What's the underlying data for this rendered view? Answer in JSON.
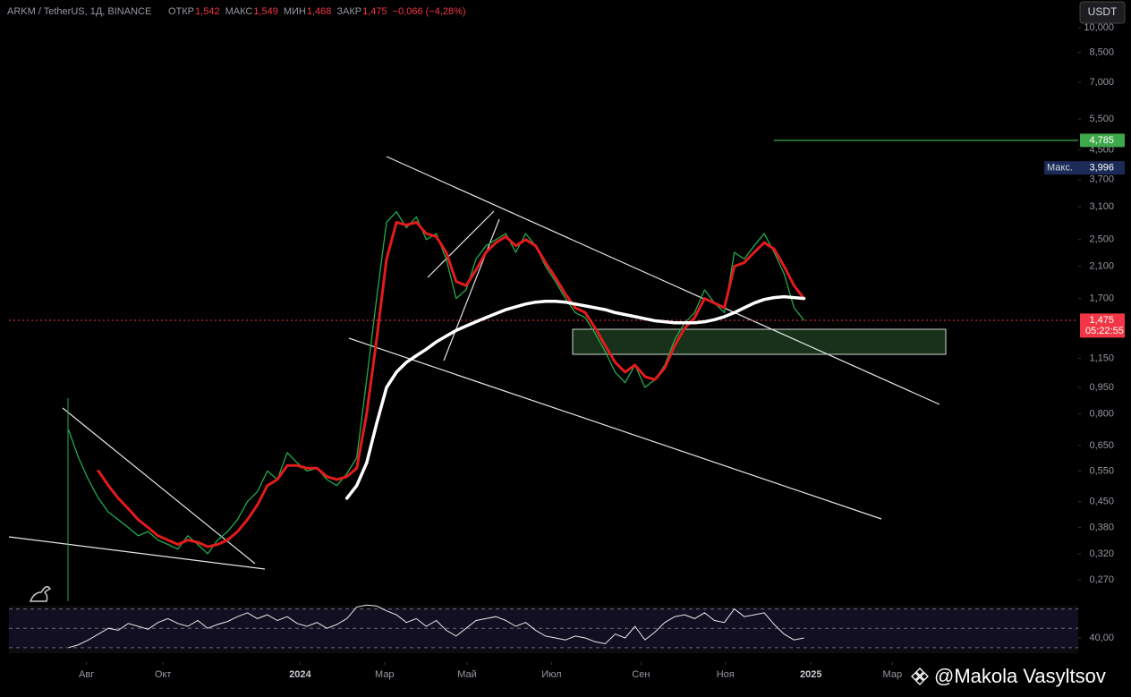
{
  "chart_data": {
    "type": "line",
    "title": "ARKM / TetherUS, 1Д, BINANCE",
    "ohlc": [
      {
        "name": "ОТКР",
        "value": 1.542,
        "label": "1,542"
      },
      {
        "name": "МАКС",
        "value": 1.549,
        "label": "1,549"
      },
      {
        "name": "МИН",
        "value": 1.468,
        "label": "1,468"
      },
      {
        "name": "ЗАКР",
        "value": 1.475,
        "label": "1,475"
      }
    ],
    "change": {
      "value": -0.066,
      "label": "−0,066 (−4,28%)"
    },
    "currency": "USDT",
    "log_y": true,
    "xlim": [
      -6,
      101.6
    ],
    "xticks": [
      {
        "value": 1.8,
        "label": "Авг"
      },
      {
        "value": 9.5,
        "label": "Окт"
      },
      {
        "value": 23.3,
        "label": "2024"
      },
      {
        "value": 31.8,
        "label": "Мар"
      },
      {
        "value": 40.1,
        "label": "Май"
      },
      {
        "value": 48.6,
        "label": "Июл"
      },
      {
        "value": 57.6,
        "label": "Сен"
      },
      {
        "value": 66.1,
        "label": "Ноя"
      },
      {
        "value": 74.7,
        "label": "2025"
      },
      {
        "value": 82.9,
        "label": "Мар"
      }
    ],
    "ylim": [
      0.2304,
      11.99
    ],
    "yticks": [
      {
        "value": 10,
        "label": "10,000"
      },
      {
        "value": 8.5,
        "label": "8,500"
      },
      {
        "value": 7,
        "label": "7,000"
      },
      {
        "value": 5.5,
        "label": "5,500"
      },
      {
        "value": 4.5,
        "label": "4,500"
      },
      {
        "value": 3.7,
        "label": "3,700"
      },
      {
        "value": 3.1,
        "label": "3,100"
      },
      {
        "value": 2.5,
        "label": "2,500"
      },
      {
        "value": 2.1,
        "label": "2,100"
      },
      {
        "value": 1.7,
        "label": "1,700"
      },
      {
        "value": 1.15,
        "label": "1,150"
      },
      {
        "value": 0.95,
        "label": "0,950"
      },
      {
        "value": 0.8,
        "label": "0,800"
      },
      {
        "value": 0.65,
        "label": "0,650"
      },
      {
        "value": 0.55,
        "label": "0,550"
      },
      {
        "value": 0.45,
        "label": "0,450"
      },
      {
        "value": 0.38,
        "label": "0,380"
      },
      {
        "value": 0.32,
        "label": "0,320"
      },
      {
        "value": 0.27,
        "label": "0,270"
      }
    ],
    "series": [
      {
        "color": "#22ab4e",
        "width": 1.3,
        "values": [
          0.72,
          0.6,
          0.52,
          0.46,
          0.42,
          0.4,
          0.38,
          0.36,
          0.37,
          0.35,
          0.34,
          0.33,
          0.36,
          0.34,
          0.32,
          0.35,
          0.37,
          0.4,
          0.45,
          0.48,
          0.55,
          0.52,
          0.62,
          0.58,
          0.55,
          0.56,
          0.52,
          0.5,
          0.54,
          0.6,
          1.0,
          1.7,
          2.8,
          3.0,
          2.7,
          2.9,
          2.5,
          2.6,
          2.2,
          1.7,
          1.8,
          2.2,
          2.4,
          2.5,
          2.6,
          2.3,
          2.6,
          2.4,
          2.1,
          1.9,
          1.7,
          1.55,
          1.5,
          1.35,
          1.2,
          1.05,
          0.98,
          1.1,
          0.95,
          1.0,
          1.1,
          1.3,
          1.45,
          1.55,
          1.8,
          1.65,
          1.55,
          2.3,
          2.2,
          2.4,
          2.6,
          2.3,
          2.0,
          1.6,
          1.475
        ]
      },
      {
        "color": "#e31b1b",
        "width": 3,
        "values": [
          null,
          null,
          null,
          0.55,
          0.5,
          0.46,
          0.43,
          0.4,
          0.38,
          0.36,
          0.35,
          0.34,
          0.35,
          0.345,
          0.335,
          0.34,
          0.35,
          0.37,
          0.4,
          0.44,
          0.5,
          0.52,
          0.57,
          0.57,
          0.56,
          0.56,
          0.53,
          0.52,
          0.53,
          0.56,
          0.8,
          1.3,
          2.2,
          2.8,
          2.75,
          2.8,
          2.6,
          2.55,
          2.3,
          1.9,
          1.85,
          2.05,
          2.3,
          2.45,
          2.55,
          2.4,
          2.5,
          2.4,
          2.15,
          1.95,
          1.75,
          1.6,
          1.55,
          1.4,
          1.25,
          1.12,
          1.05,
          1.1,
          1.02,
          1.0,
          1.08,
          1.25,
          1.4,
          1.5,
          1.7,
          1.65,
          1.6,
          2.1,
          2.15,
          2.3,
          2.45,
          2.35,
          2.1,
          1.85,
          1.7
        ]
      },
      {
        "color": "#ffffff",
        "width": 3.5,
        "values": [
          null,
          null,
          null,
          null,
          null,
          null,
          null,
          null,
          null,
          null,
          null,
          null,
          null,
          null,
          null,
          null,
          null,
          null,
          null,
          null,
          null,
          null,
          null,
          null,
          null,
          null,
          null,
          null,
          0.46,
          0.5,
          0.58,
          0.75,
          0.95,
          1.05,
          1.12,
          1.17,
          1.22,
          1.28,
          1.33,
          1.38,
          1.42,
          1.46,
          1.5,
          1.54,
          1.58,
          1.61,
          1.64,
          1.66,
          1.67,
          1.67,
          1.66,
          1.64,
          1.62,
          1.6,
          1.58,
          1.55,
          1.53,
          1.51,
          1.49,
          1.47,
          1.46,
          1.45,
          1.45,
          1.45,
          1.46,
          1.48,
          1.51,
          1.55,
          1.6,
          1.65,
          1.69,
          1.71,
          1.72,
          1.71,
          1.7
        ]
      }
    ],
    "markers": [
      {
        "value": 4.785,
        "label": "4,785",
        "color": "#3fa84a"
      },
      {
        "name": "Макс.",
        "value": 3.996,
        "label": "3,996",
        "color": "#1c2a57"
      },
      {
        "value": 1.475,
        "label": "1,475",
        "sub": "05:22:55",
        "color": "#f23645"
      }
    ],
    "rsi": {
      "ylim": [
        24.3,
        73.3
      ],
      "yticks": [
        {
          "value": 40,
          "label": "40,00"
        }
      ],
      "bands": [
        30,
        50,
        70
      ],
      "values": [
        30,
        33,
        38,
        44,
        50,
        48,
        55,
        52,
        49,
        56,
        60,
        55,
        52,
        58,
        50,
        54,
        57,
        62,
        66,
        60,
        64,
        58,
        62,
        55,
        52,
        56,
        50,
        54,
        60,
        72,
        74,
        73,
        68,
        64,
        56,
        60,
        52,
        58,
        48,
        42,
        50,
        58,
        60,
        62,
        58,
        52,
        56,
        48,
        42,
        40,
        38,
        42,
        40,
        36,
        34,
        44,
        40,
        52,
        38,
        46,
        56,
        62,
        64,
        60,
        66,
        58,
        56,
        70,
        62,
        64,
        66,
        54,
        44,
        38,
        40
      ]
    }
  },
  "watermark": "@Makola Vasyltsov"
}
